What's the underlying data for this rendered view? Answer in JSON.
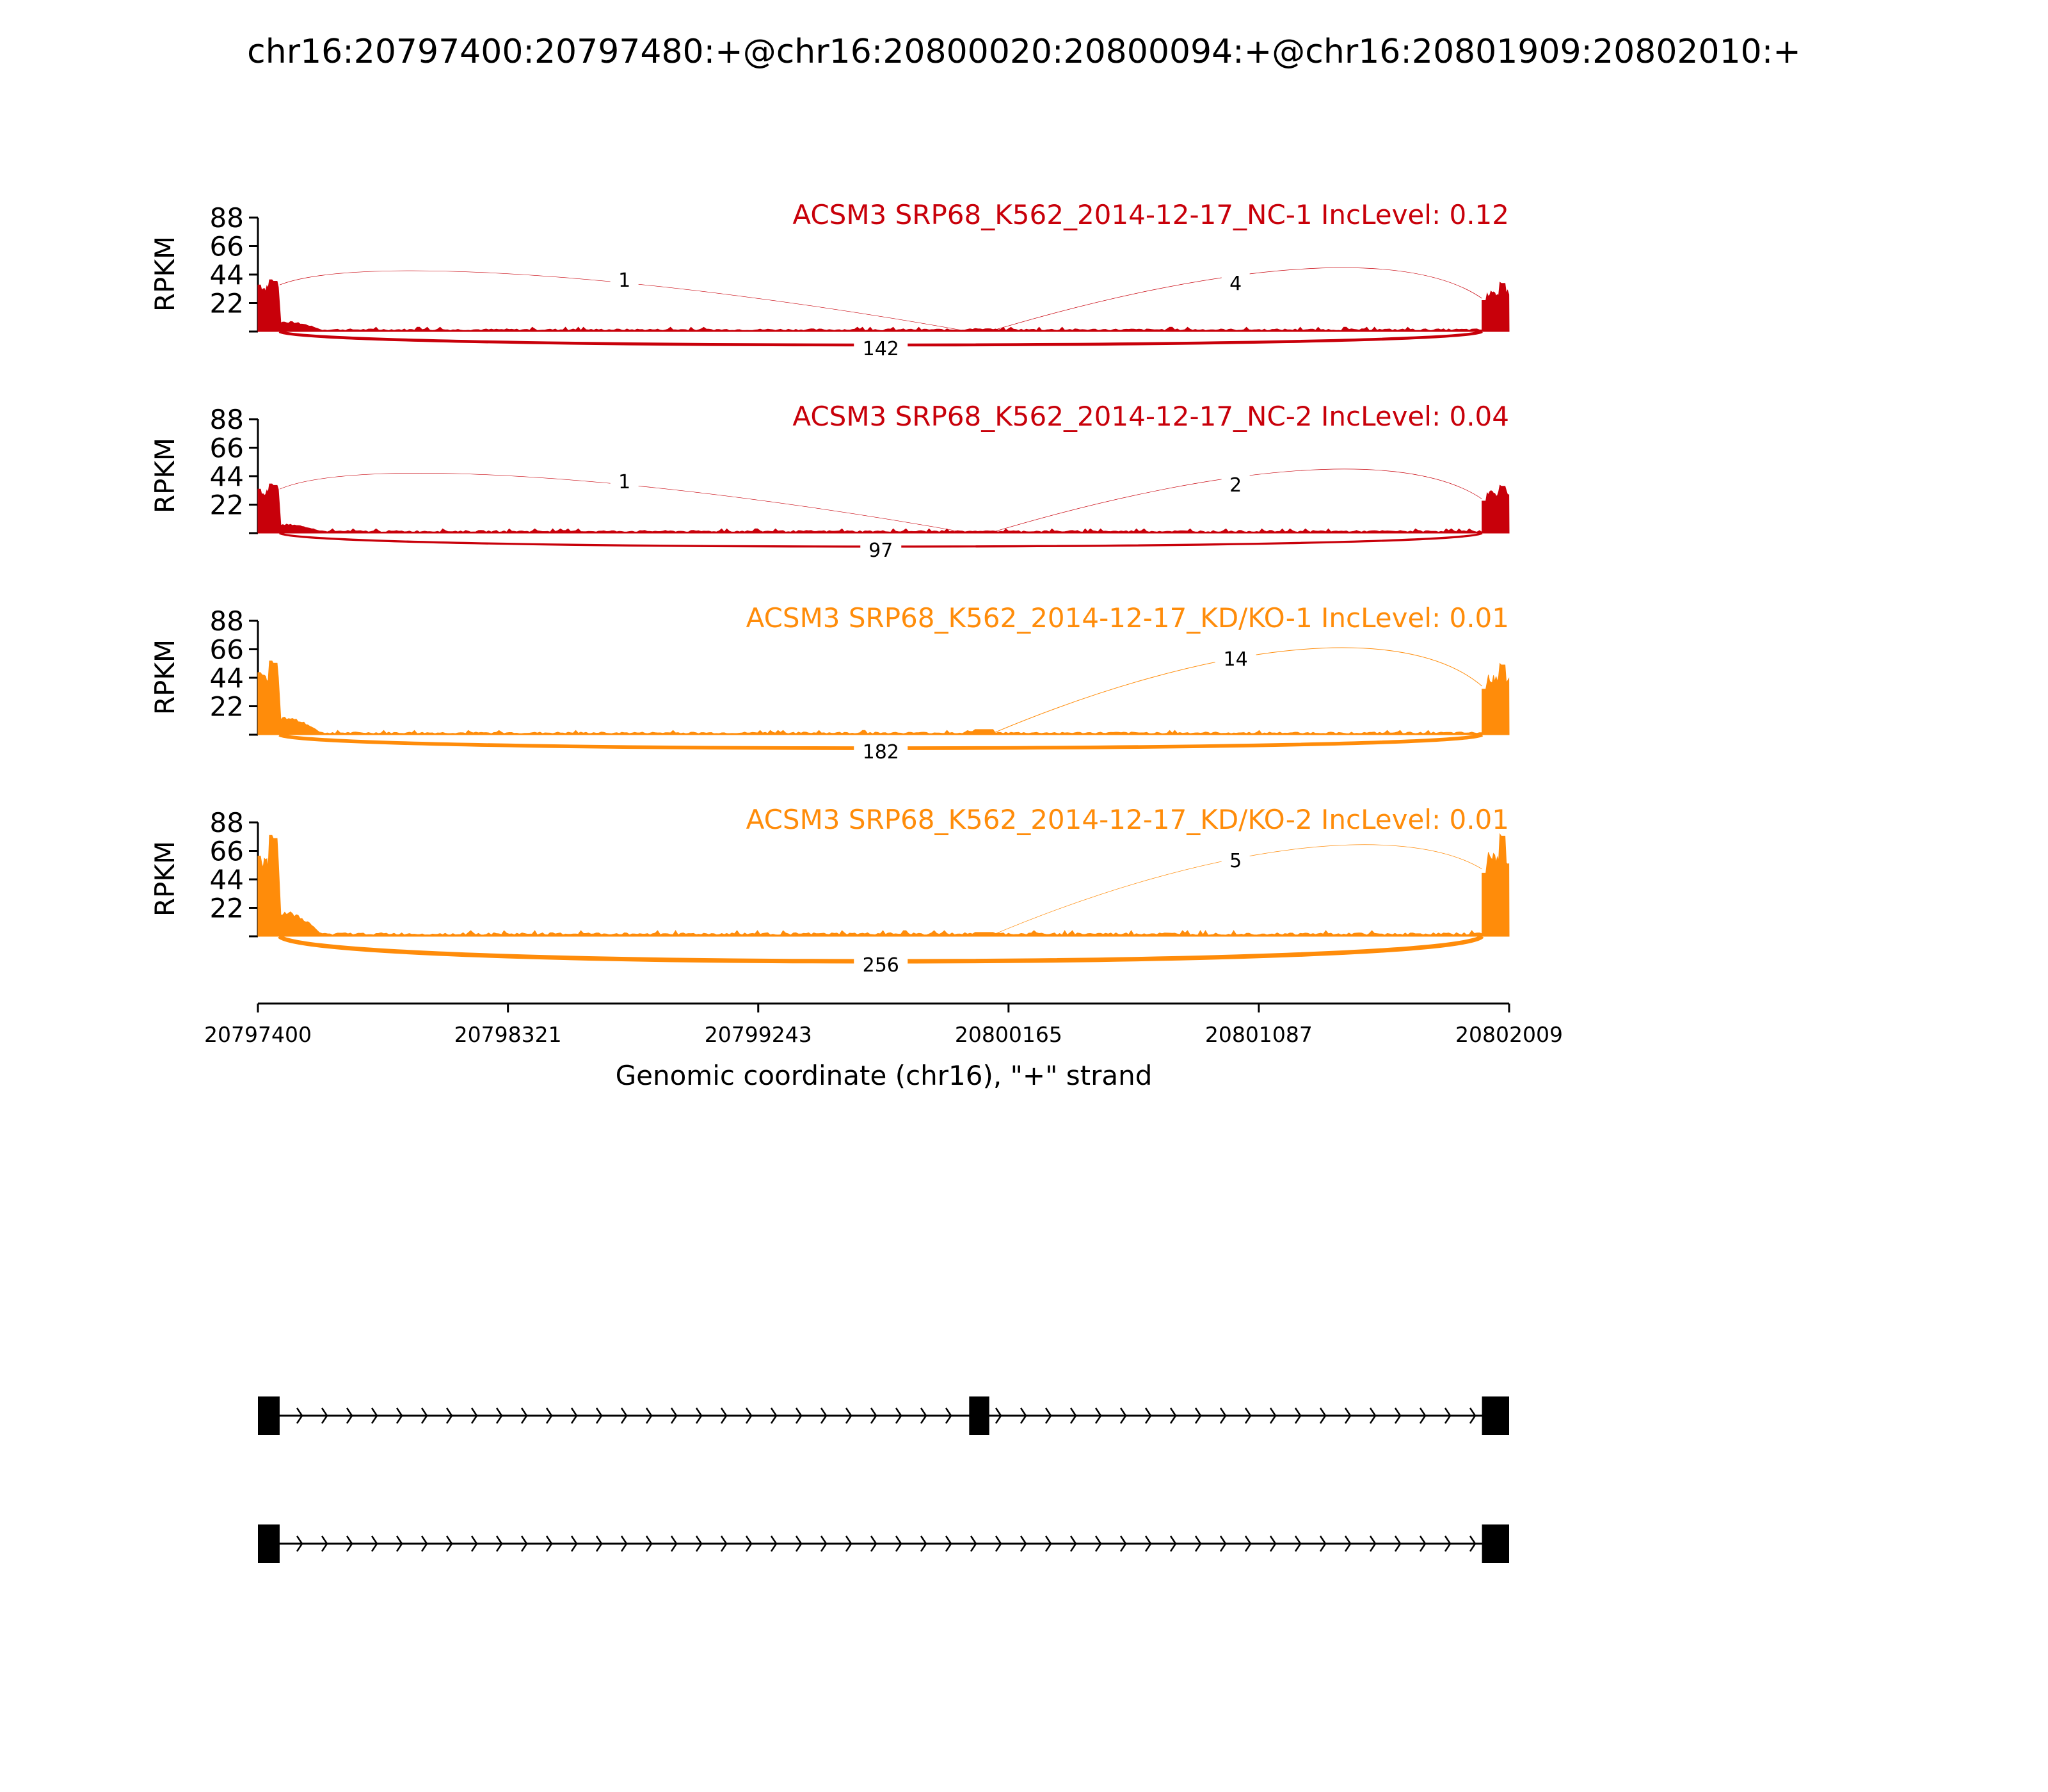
{
  "chart_data": {
    "type": "area",
    "title": "chr16:20797400:20797480:+@chr16:20800020:20800094:+@chr16:20801909:20802010:+",
    "xlabel": "Genomic coordinate (chr16), \"+\" strand",
    "ylabel": "RPKM",
    "xlim": [
      20797400,
      20802009
    ],
    "x_ticks": [
      "20797400",
      "20798321",
      "20799243",
      "20800165",
      "20801087",
      "20802009"
    ],
    "ylim": [
      0,
      88
    ],
    "y_ticks": [
      "22",
      "44",
      "66",
      "88"
    ],
    "exons": [
      {
        "start": 20797400,
        "end": 20797480
      },
      {
        "start": 20800020,
        "end": 20800094
      },
      {
        "start": 20801909,
        "end": 20802010
      }
    ],
    "panels": [
      {
        "name": "ACSM3 SRP68_K562_2014-12-17_NC-1 IncLevel: 0.12",
        "color": "#c8000a",
        "exon1_peak": 40,
        "exon1_level": 36,
        "tail_level": 8,
        "mid_exon_level": 2,
        "exon3_level": 32,
        "exon3_peak": 38,
        "intron_level": 1.5,
        "junctions": [
          {
            "label": "1",
            "start": 20797480,
            "end": 20800020,
            "reads": 1,
            "side": "top"
          },
          {
            "label": "4",
            "start": 20800094,
            "end": 20801909,
            "reads": 4,
            "side": "top"
          },
          {
            "label": "142",
            "start": 20797480,
            "end": 20801909,
            "reads": 142,
            "side": "bottom"
          }
        ]
      },
      {
        "name": "ACSM3 SRP68_K562_2014-12-17_NC-2 IncLevel: 0.04",
        "color": "#c8000a",
        "exon1_peak": 38,
        "exon1_level": 34,
        "tail_level": 7,
        "mid_exon_level": 1.5,
        "exon3_level": 33,
        "exon3_peak": 37,
        "intron_level": 1.5,
        "junctions": [
          {
            "label": "1",
            "start": 20797480,
            "end": 20800020,
            "reads": 1,
            "side": "top"
          },
          {
            "label": "2",
            "start": 20800094,
            "end": 20801909,
            "reads": 2,
            "side": "top"
          },
          {
            "label": "97",
            "start": 20797480,
            "end": 20801909,
            "reads": 97,
            "side": "bottom"
          }
        ]
      },
      {
        "name": "ACSM3 SRP68_K562_2014-12-17_KD/KO-1 IncLevel: 0.01",
        "color": "#ff8c0a",
        "exon1_peak": 57,
        "exon1_level": 48,
        "tail_level": 14,
        "mid_exon_level": 3,
        "exon3_level": 47,
        "exon3_peak": 55,
        "intron_level": 1.5,
        "junctions": [
          {
            "label": "14",
            "start": 20800094,
            "end": 20801909,
            "reads": 14,
            "side": "top"
          },
          {
            "label": "182",
            "start": 20797480,
            "end": 20801909,
            "reads": 182,
            "side": "bottom"
          }
        ]
      },
      {
        "name": "ACSM3 SRP68_K562_2014-12-17_KD/KO-2 IncLevel: 0.01",
        "color": "#ff8c0a",
        "exon1_peak": 78,
        "exon1_level": 62,
        "tail_level": 20,
        "mid_exon_level": 2,
        "exon3_level": 65,
        "exon3_peak": 79,
        "intron_level": 2,
        "junctions": [
          {
            "label": "5",
            "start": 20800094,
            "end": 20801909,
            "reads": 5,
            "side": "top"
          },
          {
            "label": "256",
            "start": 20797480,
            "end": 20801909,
            "reads": 256,
            "side": "bottom"
          }
        ]
      }
    ],
    "isoforms": [
      {
        "exons": [
          [
            20797400,
            20797480
          ],
          [
            20800020,
            20800094
          ],
          [
            20801909,
            20802010
          ]
        ]
      },
      {
        "exons": [
          [
            20797400,
            20797480
          ],
          [
            20801909,
            20802010
          ]
        ]
      }
    ]
  }
}
